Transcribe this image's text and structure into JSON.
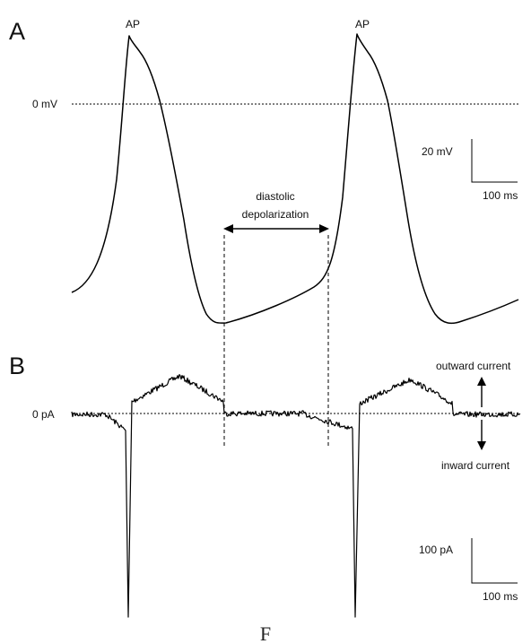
{
  "panel_a": {
    "letter": "A",
    "ap_label_1": "AP",
    "ap_label_2": "AP",
    "zero_label": "0 mV",
    "diastolic_line1": "diastolic",
    "diastolic_line2": "depolarization",
    "scale_vertical": "20 mV",
    "scale_horizontal": "100 ms"
  },
  "panel_b": {
    "letter": "B",
    "zero_label": "0 pA",
    "outward_label": "outward current",
    "inward_label": "inward current",
    "scale_vertical": "100 pA",
    "scale_horizontal": "100 ms"
  },
  "caption": "F"
}
